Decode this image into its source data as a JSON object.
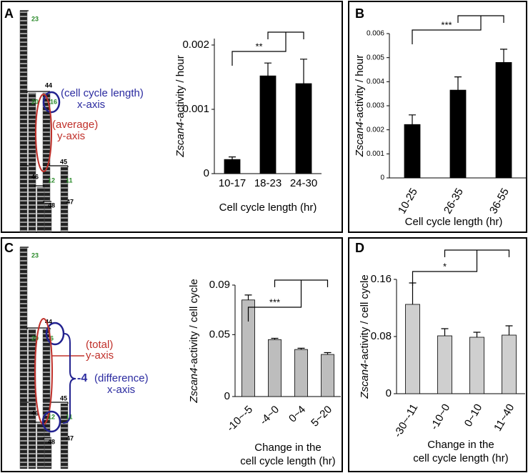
{
  "panel_labels": [
    "A",
    "B",
    "C",
    "D"
  ],
  "diagrams": [
    {
      "cell_labels": [
        "23",
        "44",
        "20",
        "16",
        "46",
        "12",
        "45",
        "11",
        "48",
        "47"
      ],
      "annotations": [
        "(cell cycle length)",
        "x-axis",
        "(average)",
        "y-axis"
      ]
    },
    {
      "cell_labels": [
        "23",
        "44",
        "20",
        "6",
        "46",
        "12",
        "45",
        "11",
        "48",
        "47"
      ],
      "annotations": [
        "(total)",
        "y-axis",
        "-4",
        "(difference)",
        "x-axis"
      ]
    }
  ],
  "chart_data": [
    {
      "type": "bar",
      "categories": [
        "10-17",
        "18-23",
        "24-30"
      ],
      "values": [
        0.00022,
        0.00152,
        0.0014
      ],
      "errors": [
        4e-05,
        0.0002,
        0.00038
      ],
      "color": "#000000",
      "ylim": [
        0,
        0.0021
      ],
      "yticks": [
        0,
        0.001,
        0.002
      ],
      "ylabel": [
        "Zscan4",
        "-activity / hour"
      ],
      "xlabel": [
        "Cell cycle length (hr)"
      ],
      "significance": "**"
    },
    {
      "type": "bar",
      "categories": [
        "10-25",
        "26-35",
        "36-55"
      ],
      "values": [
        0.00222,
        0.00365,
        0.0048
      ],
      "errors": [
        0.0004,
        0.00055,
        0.00055
      ],
      "color": "#000000",
      "ylim": [
        0,
        0.006
      ],
      "yticks": [
        0,
        0.001,
        0.002,
        0.003,
        0.004,
        0.005,
        0.006
      ],
      "ylabel": [
        "Zscan4",
        "-activity / hour"
      ],
      "xlabel": [
        "Cell cycle length (hr)"
      ],
      "significance": "***"
    },
    {
      "type": "bar",
      "categories": [
        "-10~-5",
        "-4~0",
        "0~4",
        "5~20"
      ],
      "values": [
        0.078,
        0.046,
        0.038,
        0.034
      ],
      "errors": [
        0.004,
        0.001,
        0.001,
        0.0015
      ],
      "color": "#bdbdbd",
      "ylim": [
        0,
        0.09
      ],
      "yticks": [
        0,
        0.05,
        0.09
      ],
      "ylabel": [
        "Zscan4",
        "-activity / cell cycle"
      ],
      "xlabel": [
        "Change in the",
        "cell cycle length (hr)"
      ],
      "significance": "***"
    },
    {
      "type": "bar",
      "categories": [
        "-30~-11",
        "-10~0",
        "0~10",
        "11~40"
      ],
      "values": [
        0.125,
        0.081,
        0.079,
        0.082
      ],
      "errors": [
        0.03,
        0.01,
        0.007,
        0.013
      ],
      "color": "#cfcfcf",
      "ylim": [
        0,
        0.16
      ],
      "yticks": [
        0,
        0.08,
        0.16
      ],
      "ylabel": [
        "Zscan4",
        "-activity / cell cycle"
      ],
      "xlabel": [
        "Change in the",
        "cell cycle length (hr)"
      ],
      "significance": "*"
    }
  ]
}
